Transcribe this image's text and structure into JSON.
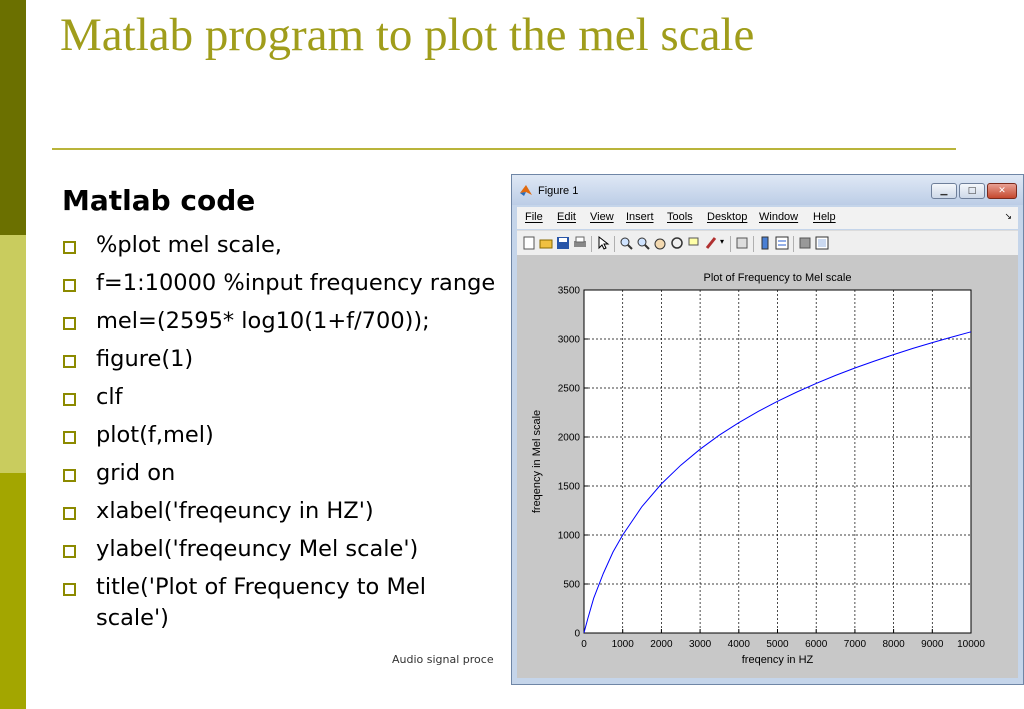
{
  "slide": {
    "title": "Matlab program to plot the mel scale",
    "heading": "Matlab code",
    "bullets": [
      "%plot mel scale,",
      "f=1:10000 %input frequency range",
      "mel=(2595* log10(1+f/700));",
      "figure(1)",
      "clf",
      "plot(f,mel)",
      "grid on",
      "xlabel('freqeuncy in HZ')",
      "ylabel('freqeuncy Mel scale')",
      "title('Plot of Frequency to Mel scale')"
    ],
    "footer": "Audio signal proce",
    "colors": {
      "title": "#a09d1b",
      "bar_dark": "#6b7000",
      "bar_light": "#c9cc5e",
      "bar_mid": "#a3a600",
      "line": "#0000ff"
    }
  },
  "window": {
    "title": "Figure 1",
    "icon": "matlab-icon",
    "controls": [
      "minimize-icon",
      "maximize-icon",
      "close-icon"
    ],
    "menu": [
      "File",
      "Edit",
      "View",
      "Insert",
      "Tools",
      "Desktop",
      "Window",
      "Help"
    ],
    "toolbar_icons": [
      "new-figure-icon",
      "open-file-icon",
      "save-icon",
      "print-icon",
      "arrow-icon",
      "zoom-in-icon",
      "zoom-out-icon",
      "pan-icon",
      "rotate-icon",
      "data-cursor-icon",
      "brush-icon",
      "link-icon",
      "colorbar-icon",
      "legend-icon",
      "hide-tools-icon",
      "show-tools-icon"
    ]
  },
  "chart_data": {
    "type": "line",
    "title": "Plot of Frequency to Mel scale",
    "xlabel": "freqency in HZ",
    "ylabel": "freqency in Mel scale",
    "xlim": [
      0,
      10000
    ],
    "ylim": [
      0,
      3500
    ],
    "xticks": [
      0,
      1000,
      2000,
      3000,
      4000,
      5000,
      6000,
      7000,
      8000,
      9000,
      10000
    ],
    "yticks": [
      0,
      500,
      1000,
      1500,
      2000,
      2500,
      3000,
      3500
    ],
    "grid": true,
    "series": [
      {
        "x": [
          1,
          100,
          250,
          500,
          750,
          1000,
          1500,
          2000,
          2500,
          3000,
          3500,
          4000,
          4500,
          5000,
          5500,
          6000,
          6500,
          7000,
          7500,
          8000,
          8500,
          9000,
          9500,
          10000
        ],
        "y": [
          1.6,
          150,
          355,
          607,
          827,
          1000,
          1291,
          1521,
          1712,
          1876,
          2019,
          2146,
          2261,
          2364,
          2459,
          2547,
          2629,
          2704,
          2775,
          2841,
          2904,
          2963,
          3019,
          3073
        ],
        "color": "#0000ff"
      }
    ]
  }
}
